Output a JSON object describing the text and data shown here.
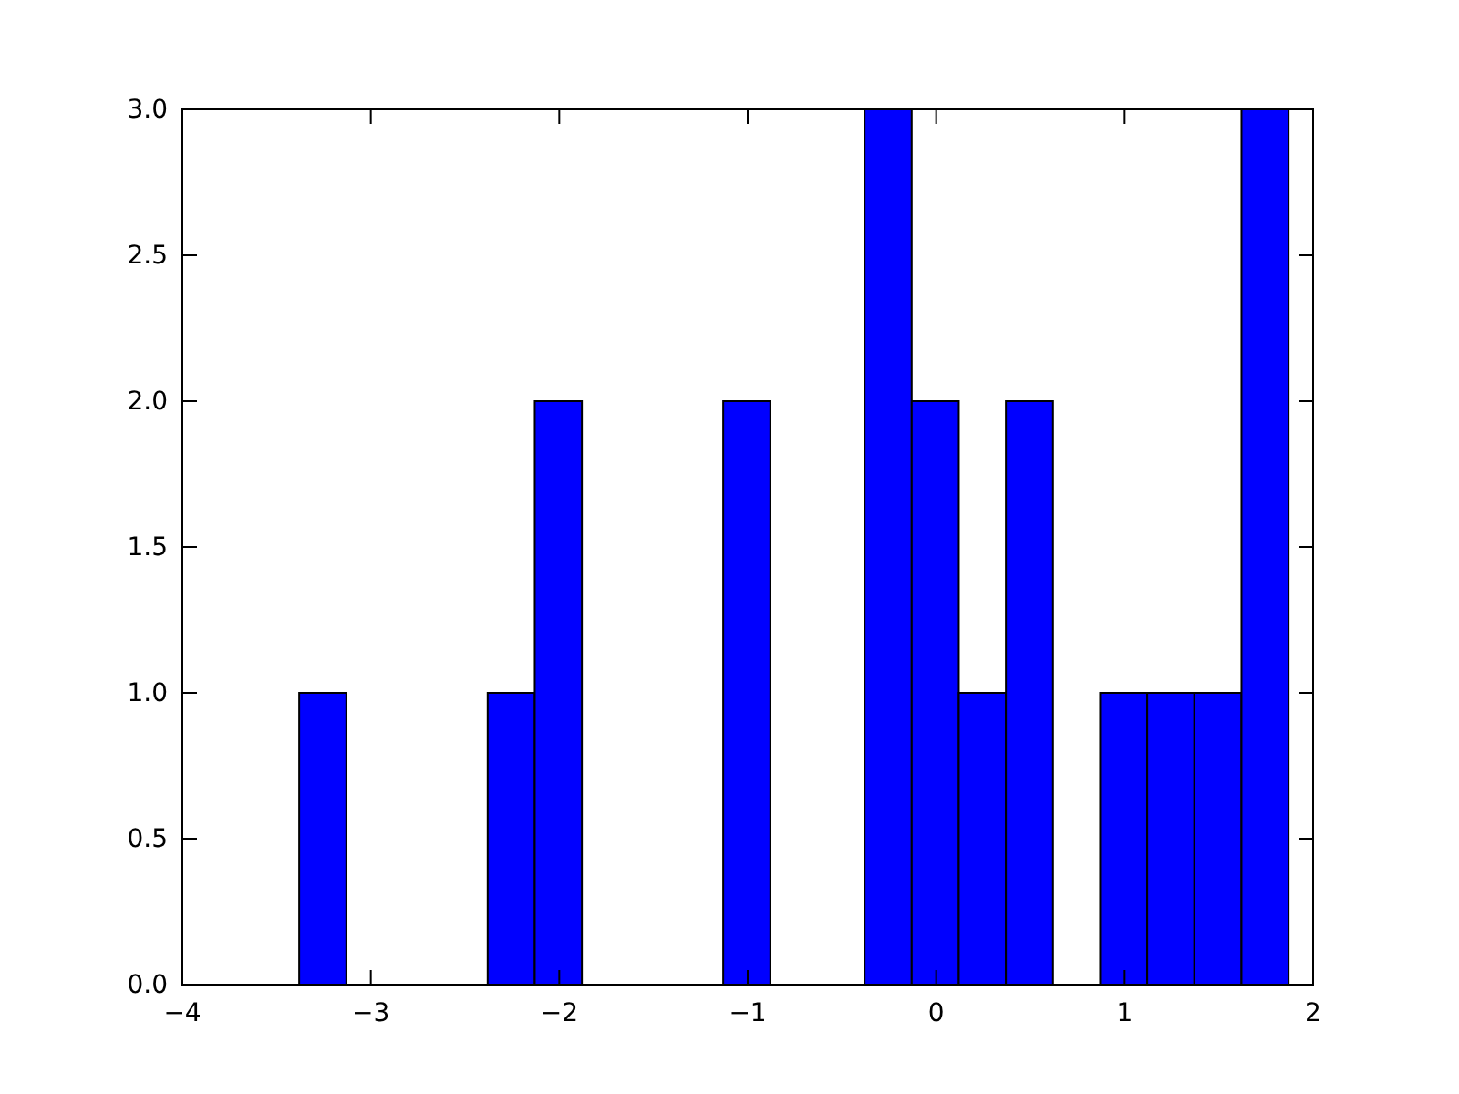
{
  "chart_data": {
    "type": "histogram",
    "color": "#0000ff",
    "bins": [
      -3.38,
      -3.13,
      -2.88,
      -2.63,
      -2.38,
      -2.13,
      -1.88,
      -1.63,
      -1.38,
      -1.13,
      -0.88,
      -0.63,
      -0.38,
      -0.13,
      0.12,
      0.37,
      0.62,
      0.87,
      1.12,
      1.37,
      1.62,
      1.87
    ],
    "values": [
      1,
      0,
      0,
      0,
      1,
      2,
      0,
      0,
      0,
      2,
      0,
      0,
      3,
      2,
      1,
      2,
      0,
      1,
      1,
      1,
      3
    ],
    "xlim": [
      -4,
      2
    ],
    "xticks": [
      {
        "value": -4,
        "label": "−4"
      },
      {
        "value": -3,
        "label": "−3"
      },
      {
        "value": -2,
        "label": "−2"
      },
      {
        "value": -1,
        "label": "−1"
      },
      0,
      1,
      2
    ],
    "ylim": [
      0,
      3
    ],
    "yticks": [
      {
        "value": 0,
        "label": "0.0"
      },
      {
        "value": 0.5,
        "label": "0.5"
      },
      {
        "value": 1,
        "label": "1.0"
      },
      {
        "value": 1.5,
        "label": "1.5"
      },
      {
        "value": 2,
        "label": "2.0"
      },
      {
        "value": 2.5,
        "label": "2.5"
      },
      {
        "value": 3,
        "label": "3.0"
      }
    ]
  }
}
